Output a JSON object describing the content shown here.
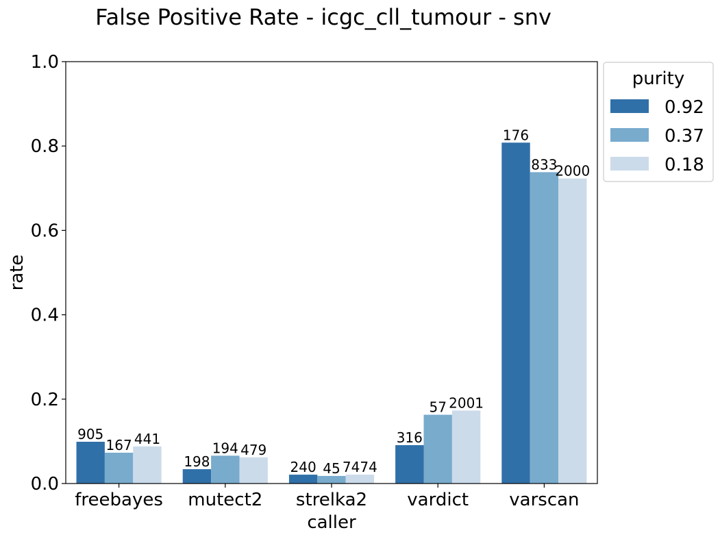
{
  "chart_data": {
    "type": "bar",
    "title": "False Positive Rate - icgc_cll_tumour - snv",
    "xlabel": "caller",
    "ylabel": "rate",
    "ylim": [
      0,
      1.0
    ],
    "yticks": [
      "0.0",
      "0.2",
      "0.4",
      "0.6",
      "0.8",
      "1.0"
    ],
    "categories": [
      "freebayes",
      "mutect2",
      "strelka2",
      "vardict",
      "varscan"
    ],
    "legend": {
      "title": "purity",
      "placement": "outside-top-right"
    },
    "grid": false,
    "series": [
      {
        "name": "0.92",
        "color": "#3070a8",
        "values": [
          0.099,
          0.034,
          0.021,
          0.091,
          0.808
        ],
        "labels": [
          "905",
          "198",
          "240",
          "316",
          "176"
        ]
      },
      {
        "name": "0.37",
        "color": "#79abcd",
        "values": [
          0.073,
          0.066,
          0.018,
          0.163,
          0.738
        ],
        "labels": [
          "167",
          "194",
          "45",
          "57",
          "833"
        ]
      },
      {
        "name": "0.18",
        "color": "#cbdbea",
        "values": [
          0.088,
          0.062,
          0.021,
          0.173,
          0.723
        ],
        "labels": [
          "441",
          "479",
          "7474",
          "2001",
          "2000"
        ]
      }
    ]
  }
}
